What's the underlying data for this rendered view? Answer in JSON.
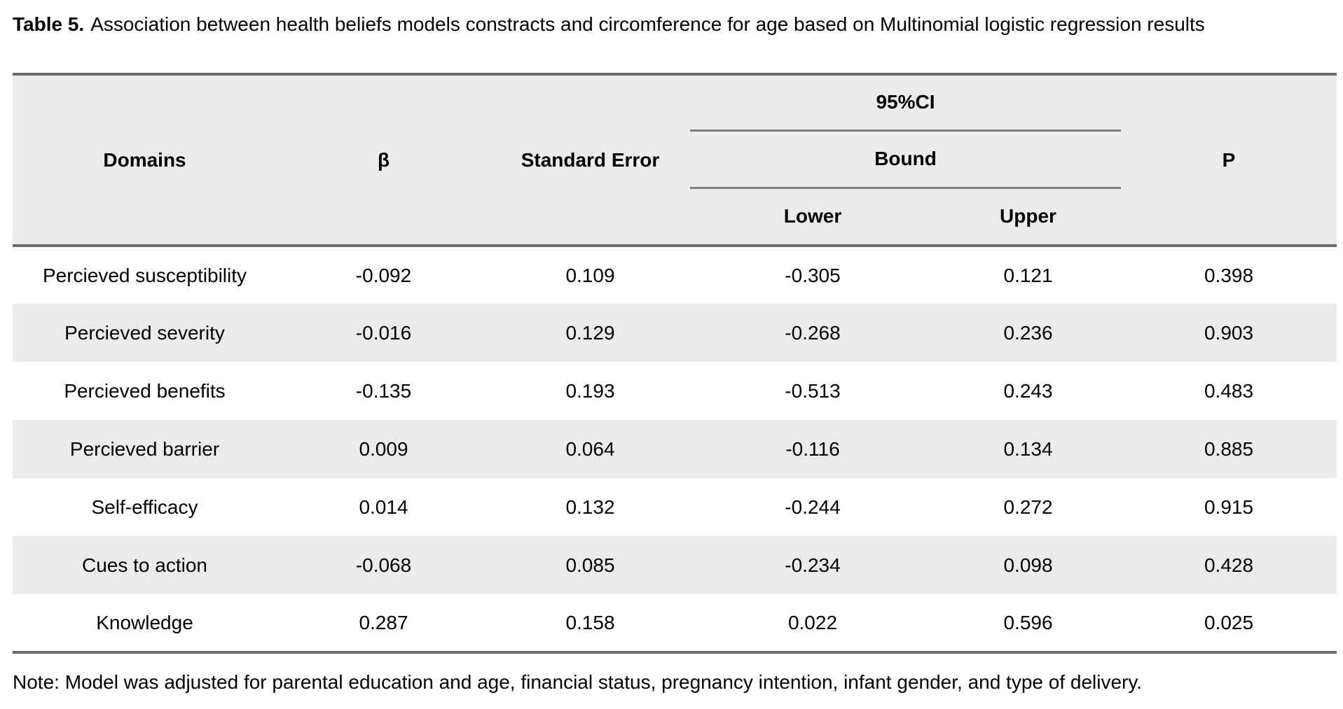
{
  "title": {
    "label": "Table 5.",
    "text": "Association between health beliefs models constracts and circomference for age based on Multinomial logistic regression results"
  },
  "table": {
    "headers": {
      "domains": "Domains",
      "beta": "β",
      "standard_error": "Standard Error",
      "ci": "95%CI",
      "bound": "Bound",
      "lower": "Lower",
      "upper": "Upper",
      "p": "P"
    },
    "rows": [
      {
        "domain": "Percieved susceptibility",
        "beta": "-0.092",
        "se": "0.109",
        "lower": "-0.305",
        "upper": "0.121",
        "p": "0.398"
      },
      {
        "domain": "Percieved severity",
        "beta": "-0.016",
        "se": "0.129",
        "lower": "-0.268",
        "upper": "0.236",
        "p": "0.903"
      },
      {
        "domain": "Percieved benefits",
        "beta": "-0.135",
        "se": "0.193",
        "lower": "-0.513",
        "upper": "0.243",
        "p": "0.483"
      },
      {
        "domain": "Percieved barrier",
        "beta": "0.009",
        "se": "0.064",
        "lower": "-0.116",
        "upper": "0.134",
        "p": "0.885"
      },
      {
        "domain": "Self-efficacy",
        "beta": "0.014",
        "se": "0.132",
        "lower": "-0.244",
        "upper": "0.272",
        "p": "0.915"
      },
      {
        "domain": "Cues to action",
        "beta": "-0.068",
        "se": "0.085",
        "lower": "-0.234",
        "upper": "0.098",
        "p": "0.428"
      },
      {
        "domain": "Knowledge",
        "beta": "0.287",
        "se": "0.158",
        "lower": "0.022",
        "upper": "0.596",
        "p": "0.025"
      }
    ]
  },
  "note": "Note: Model was adjusted for parental education and age, financial status, pregnancy intention, infant gender, and type of delivery.",
  "colors": {
    "header_bg": "#eaebec",
    "stripe_bg": "#eaebec",
    "border_heavy": "#6a6b6b",
    "border_thin": "#7e7f7f",
    "text": "#000000",
    "background": "#ffffff"
  }
}
